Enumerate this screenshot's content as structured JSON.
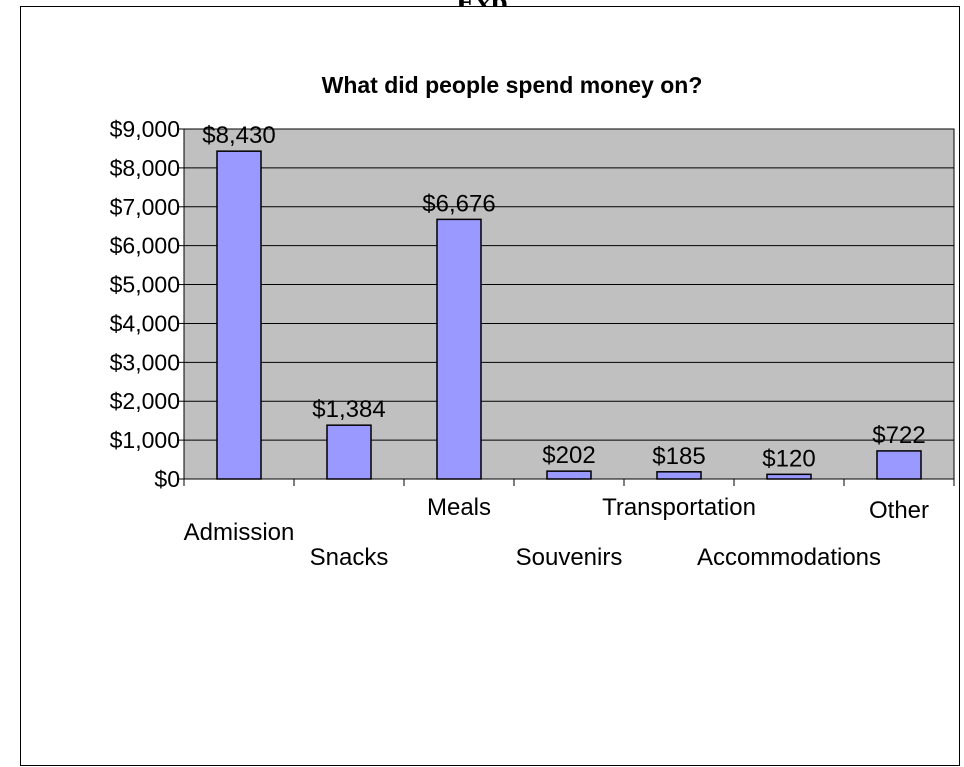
{
  "page": {
    "title": "Exp"
  },
  "chart_data": {
    "type": "bar",
    "title": "What did people spend money on?",
    "categories": [
      "Admission",
      "Snacks",
      "Meals",
      "Souvenirs",
      "Transportation",
      "Accommodations",
      "Other"
    ],
    "values": [
      8430,
      1384,
      6676,
      202,
      185,
      120,
      722
    ],
    "data_labels": [
      "$8,430",
      "$1,384",
      "$6,676",
      "$202",
      "$185",
      "$120",
      "$722"
    ],
    "ytick_values": [
      0,
      1000,
      2000,
      3000,
      4000,
      5000,
      6000,
      7000,
      8000,
      9000
    ],
    "ytick_labels": [
      "$0",
      "$1,000",
      "$2,000",
      "$3,000",
      "$4,000",
      "$5,000",
      "$6,000",
      "$7,000",
      "$8,000",
      "$9,000"
    ],
    "ylim": [
      0,
      9000
    ],
    "xlabel": "",
    "ylabel": "",
    "grid": true,
    "legend": "none",
    "colors": {
      "bar_fill": "#9999ff",
      "bar_stroke": "#000000",
      "plot_background": "#c0c0c0",
      "gridline": "#000000"
    }
  }
}
